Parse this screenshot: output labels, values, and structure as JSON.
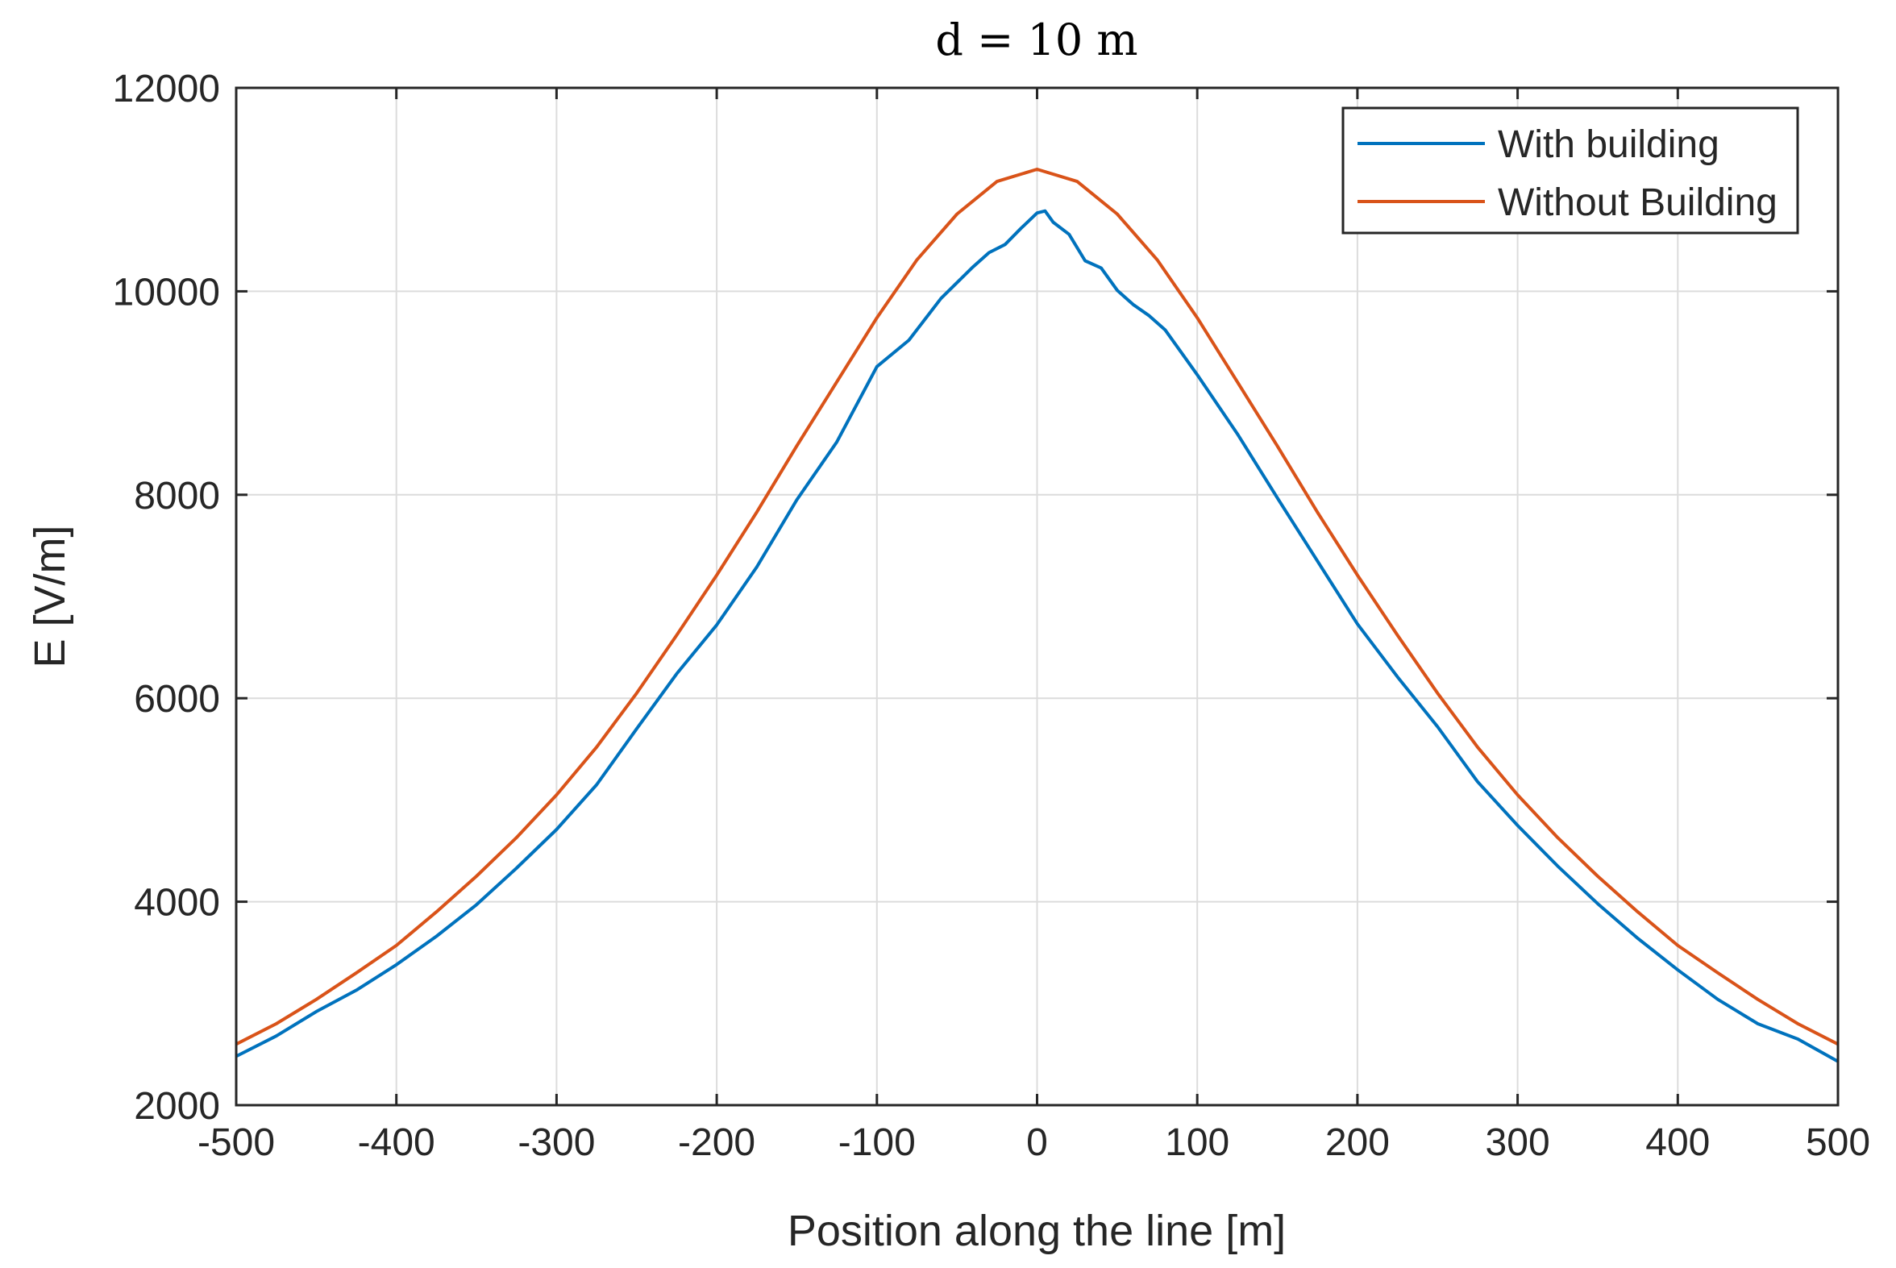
{
  "chart_data": {
    "type": "line",
    "title": "d = 10 m",
    "xlabel": "Position along the line [m]",
    "ylabel": "E [V/m]",
    "xlim": [
      -500,
      500
    ],
    "ylim": [
      2000,
      12000
    ],
    "xticks": [
      -500,
      -400,
      -300,
      -200,
      -100,
      0,
      100,
      200,
      300,
      400,
      500
    ],
    "yticks": [
      2000,
      4000,
      6000,
      8000,
      10000,
      12000
    ],
    "xtick_labels": [
      "-500",
      "-400",
      "-300",
      "-200",
      "-100",
      "0",
      "100",
      "200",
      "300",
      "400",
      "500"
    ],
    "ytick_labels": [
      "2000",
      "4000",
      "6000",
      "8000",
      "10000",
      "12000"
    ],
    "grid": true,
    "legend_position": "top-right",
    "series": [
      {
        "name": "With building",
        "color": "#0072BD",
        "x": [
          -500,
          -475,
          -450,
          -425,
          -400,
          -375,
          -350,
          -325,
          -300,
          -275,
          -250,
          -225,
          -200,
          -175,
          -150,
          -125,
          -100,
          -80,
          -60,
          -40,
          -30,
          -20,
          -10,
          0,
          5,
          10,
          20,
          30,
          40,
          50,
          60,
          70,
          80,
          90,
          100,
          125,
          150,
          175,
          200,
          225,
          250,
          275,
          300,
          325,
          350,
          375,
          400,
          425,
          450,
          475,
          500
        ],
        "values": [
          2480,
          2680,
          2920,
          3130,
          3380,
          3660,
          3970,
          4330,
          4710,
          5150,
          5700,
          6240,
          6720,
          7290,
          7950,
          8520,
          9260,
          9520,
          9930,
          10240,
          10380,
          10460,
          10620,
          10770,
          10790,
          10680,
          10560,
          10300,
          10230,
          10010,
          9870,
          9760,
          9620,
          9400,
          9180,
          8600,
          7970,
          7350,
          6730,
          6210,
          5720,
          5180,
          4750,
          4350,
          3980,
          3640,
          3330,
          3040,
          2800,
          2650,
          2430
        ]
      },
      {
        "name": "Without Building",
        "color": "#D95319",
        "x": [
          -500,
          -475,
          -450,
          -425,
          -400,
          -375,
          -350,
          -325,
          -300,
          -275,
          -250,
          -225,
          -200,
          -175,
          -150,
          -125,
          -100,
          -75,
          -50,
          -25,
          0,
          25,
          50,
          75,
          100,
          125,
          150,
          175,
          200,
          225,
          250,
          275,
          300,
          325,
          350,
          375,
          400,
          425,
          450,
          475,
          500
        ],
        "values": [
          2600,
          2800,
          3040,
          3300,
          3570,
          3900,
          4250,
          4630,
          5050,
          5520,
          6050,
          6620,
          7210,
          7830,
          8480,
          9110,
          9740,
          10310,
          10760,
          11080,
          11200,
          11080,
          10760,
          10310,
          9740,
          9110,
          8480,
          7830,
          7210,
          6620,
          6050,
          5520,
          5050,
          4630,
          4250,
          3900,
          3570,
          3300,
          3040,
          2800,
          2600
        ]
      }
    ]
  }
}
